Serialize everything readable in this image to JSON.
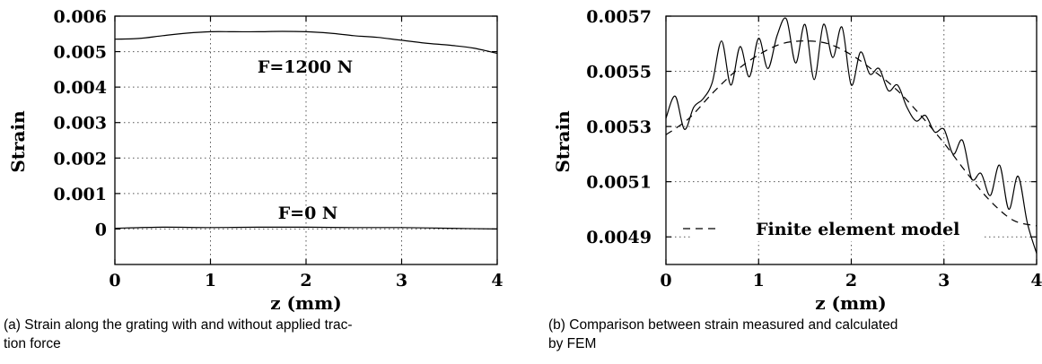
{
  "chart_data": [
    {
      "type": "line",
      "title": "",
      "xlabel": "z (mm)",
      "ylabel": "Strain",
      "xlim": [
        0,
        4
      ],
      "ylim": [
        -0.001,
        0.006
      ],
      "xticks": [
        "0",
        "1",
        "2",
        "3",
        "4"
      ],
      "yticks": [
        "0",
        "0.001",
        "0.002",
        "0.003",
        "0.004",
        "0.005",
        "0.006"
      ],
      "grid": true,
      "annotations": [
        "F=1200 N",
        "F=0 N"
      ],
      "series": [
        {
          "name": "F=1200 N",
          "x": [
            0.0,
            0.25,
            0.5,
            0.75,
            1.0,
            1.25,
            1.5,
            1.75,
            2.0,
            2.25,
            2.5,
            2.75,
            3.0,
            3.25,
            3.5,
            3.75,
            4.0
          ],
          "values": [
            0.00535,
            0.00537,
            0.00545,
            0.00552,
            0.00556,
            0.00556,
            0.00556,
            0.00557,
            0.00556,
            0.00552,
            0.00545,
            0.0054,
            0.00532,
            0.00524,
            0.00518,
            0.0051,
            0.00495
          ]
        },
        {
          "name": "F=0 N",
          "x": [
            0.0,
            0.5,
            1.0,
            1.5,
            2.0,
            2.5,
            3.0,
            3.5,
            4.0
          ],
          "values": [
            2e-05,
            5e-05,
            4e-05,
            5e-05,
            5e-05,
            4e-05,
            4e-05,
            2e-05,
            0.0
          ]
        }
      ]
    },
    {
      "type": "line",
      "title": "",
      "xlabel": "z (mm)",
      "ylabel": "Strain",
      "xlim": [
        0,
        4
      ],
      "ylim": [
        0.0048,
        0.0057
      ],
      "xticks": [
        "0",
        "1",
        "2",
        "3",
        "4"
      ],
      "yticks": [
        "0.0049",
        "0.0051",
        "0.0053",
        "0.0055",
        "0.0057"
      ],
      "grid": true,
      "legend": "bottom-left",
      "series": [
        {
          "name": "",
          "x": [
            0.0,
            0.1,
            0.2,
            0.3,
            0.4,
            0.5,
            0.6,
            0.7,
            0.8,
            0.9,
            1.0,
            1.1,
            1.2,
            1.3,
            1.4,
            1.5,
            1.6,
            1.7,
            1.8,
            1.9,
            2.0,
            2.1,
            2.2,
            2.3,
            2.4,
            2.5,
            2.6,
            2.7,
            2.8,
            2.9,
            3.0,
            3.1,
            3.2,
            3.3,
            3.4,
            3.5,
            3.6,
            3.7,
            3.8,
            3.9,
            4.0
          ],
          "values": [
            0.00533,
            0.00541,
            0.00529,
            0.00537,
            0.0054,
            0.00546,
            0.00561,
            0.00545,
            0.00559,
            0.00548,
            0.00562,
            0.00551,
            0.00563,
            0.00569,
            0.00553,
            0.00567,
            0.00547,
            0.00567,
            0.00555,
            0.00566,
            0.00545,
            0.00557,
            0.00549,
            0.00551,
            0.00543,
            0.00545,
            0.00537,
            0.00532,
            0.00534,
            0.00528,
            0.00529,
            0.0052,
            0.00525,
            0.00511,
            0.00513,
            0.00505,
            0.00516,
            0.005,
            0.00512,
            0.00495,
            0.00484
          ]
        },
        {
          "name": "Finite element model",
          "style": "dashed",
          "x": [
            0.0,
            0.25,
            0.5,
            0.75,
            1.0,
            1.25,
            1.5,
            1.75,
            2.0,
            2.25,
            2.5,
            2.75,
            3.0,
            3.25,
            3.5,
            3.75,
            4.0
          ],
          "values": [
            0.00527,
            0.00533,
            0.00542,
            0.0055,
            0.00556,
            0.0056,
            0.00561,
            0.0056,
            0.00556,
            0.0055,
            0.00543,
            0.00534,
            0.00524,
            0.00513,
            0.00503,
            0.00496,
            0.00494
          ]
        }
      ]
    }
  ],
  "captions": {
    "a_line1": "(a) Strain along the grating with and without applied trac-",
    "a_line2": "tion force",
    "b_line1": "(b) Comparison between strain measured and calculated",
    "b_line2": "by FEM"
  }
}
